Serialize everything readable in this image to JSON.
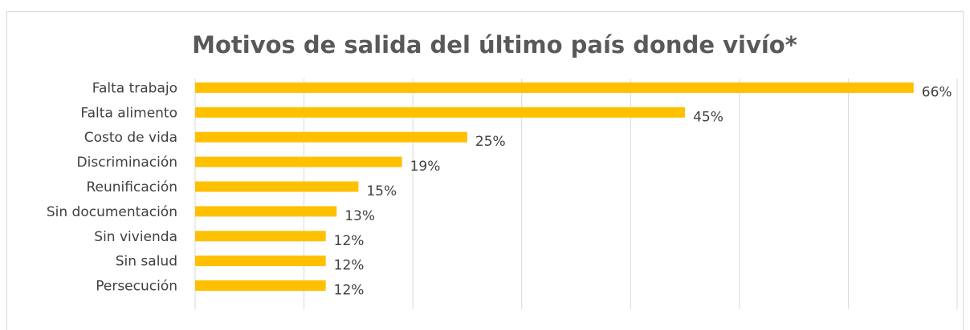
{
  "chart_data": {
    "type": "hbar",
    "title": "Motivos de salida del último país donde vivío*",
    "categories": [
      "Falta trabajo",
      "Falta alimento",
      "Costo de vida",
      "Discriminación",
      "Reunificación",
      "Sin documentación",
      "Sin vivienda",
      "Sin salud",
      "Persecución"
    ],
    "values": [
      66,
      45,
      25,
      19,
      15,
      13,
      12,
      12,
      12
    ],
    "value_labels": [
      "66%",
      "45%",
      "25%",
      "19%",
      "15%",
      "13%",
      "12%",
      "12%",
      "12%"
    ],
    "color": "#ffc000",
    "xlim": [
      0,
      70
    ],
    "xticks": [
      0,
      10,
      20,
      30,
      40,
      50,
      60,
      70
    ],
    "grid": true
  }
}
